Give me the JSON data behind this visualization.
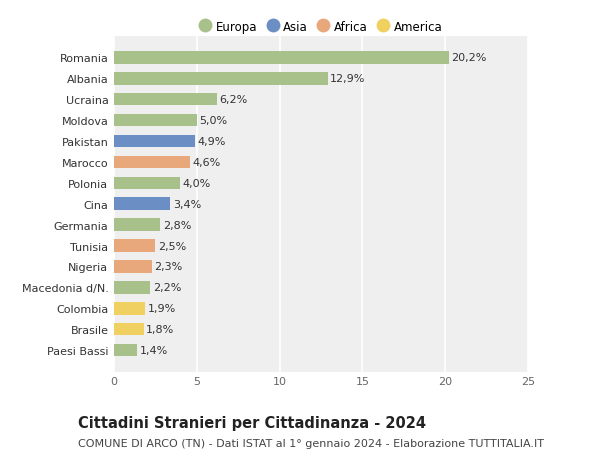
{
  "categories": [
    "Paesi Bassi",
    "Brasile",
    "Colombia",
    "Macedonia d/N.",
    "Nigeria",
    "Tunisia",
    "Germania",
    "Cina",
    "Polonia",
    "Marocco",
    "Pakistan",
    "Moldova",
    "Ucraina",
    "Albania",
    "Romania"
  ],
  "values": [
    1.4,
    1.8,
    1.9,
    2.2,
    2.3,
    2.5,
    2.8,
    3.4,
    4.0,
    4.6,
    4.9,
    5.0,
    6.2,
    12.9,
    20.2
  ],
  "labels": [
    "1,4%",
    "1,8%",
    "1,9%",
    "2,2%",
    "2,3%",
    "2,5%",
    "2,8%",
    "3,4%",
    "4,0%",
    "4,6%",
    "4,9%",
    "5,0%",
    "6,2%",
    "12,9%",
    "20,2%"
  ],
  "continent": [
    "Europa",
    "America",
    "America",
    "Europa",
    "Africa",
    "Africa",
    "Europa",
    "Asia",
    "Europa",
    "Africa",
    "Asia",
    "Europa",
    "Europa",
    "Europa",
    "Europa"
  ],
  "continent_colors": {
    "Europa": "#a8c08a",
    "Asia": "#6b8fc4",
    "Africa": "#e8a87c",
    "America": "#f0d060"
  },
  "legend_order": [
    "Europa",
    "Asia",
    "Africa",
    "America"
  ],
  "title": "Cittadini Stranieri per Cittadinanza - 2024",
  "subtitle": "COMUNE DI ARCO (TN) - Dati ISTAT al 1° gennaio 2024 - Elaborazione TUTTITALIA.IT",
  "xlim": [
    0,
    25
  ],
  "xticks": [
    0,
    5,
    10,
    15,
    20,
    25
  ],
  "background_color": "#ffffff",
  "plot_bg_color": "#efefef",
  "grid_color": "#ffffff",
  "title_fontsize": 10.5,
  "subtitle_fontsize": 8,
  "tick_fontsize": 8,
  "label_fontsize": 8,
  "bar_height": 0.6
}
